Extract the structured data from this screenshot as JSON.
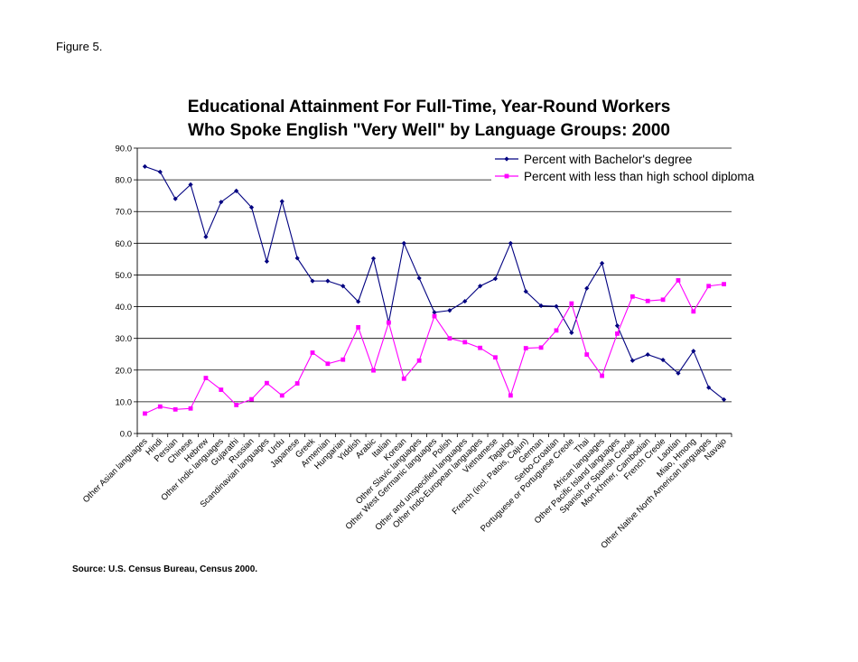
{
  "figure_label": "Figure 5.",
  "source": "Source: U.S. Census Bureau, Census 2000.",
  "chart_data": {
    "type": "line",
    "title_lines": [
      "Educational Attainment For Full-Time, Year-Round Workers",
      "Who Spoke English \"Very Well\" by Language Groups: 2000"
    ],
    "ylim": [
      0,
      90
    ],
    "y_ticks": [
      "0.0",
      "10.0",
      "20.0",
      "30.0",
      "40.0",
      "50.0",
      "60.0",
      "70.0",
      "80.0",
      "90.0"
    ],
    "y_tick_values": [
      0,
      10,
      20,
      30,
      40,
      50,
      60,
      70,
      80,
      90
    ],
    "grid": "horizontal",
    "legend_position": "top-right",
    "categories": [
      "Other Asian languages",
      "Hindi",
      "Persian",
      "Chinese",
      "Hebrew",
      "Other Indic languages",
      "Gujarathi",
      "Russian",
      "Scandinavian languages",
      "Urdu",
      "Japanese",
      "Greek",
      "Armenian",
      "Hungarian",
      "Yiddish",
      "Arabic",
      "Italian",
      "Korean",
      "Other Slavic languages",
      "Other West Germanic languages",
      "Polish",
      "Other and unspecified languages",
      "Other Indo-European languages",
      "Vietnamese",
      "Tagalog",
      "French (incl. Patois, Cajun)",
      "German",
      "Serbo-Croatian",
      "Portuguese or Portuguese Creole",
      "Thai",
      "African languages",
      "Other Pacific Island languages",
      "Spanish or Spanish Creole",
      "Mon-Khmer, Cambodian",
      "French Creole",
      "Laotian",
      "Miao, Hmong",
      "Other Native North American languages",
      "Navajo"
    ],
    "series": [
      {
        "name": "Percent with Bachelor's degree",
        "color": "#000080",
        "marker": "diamond",
        "values": [
          84.2,
          82.5,
          74.0,
          78.5,
          62.0,
          73.0,
          76.5,
          71.3,
          54.3,
          73.2,
          55.3,
          48.1,
          48.1,
          46.5,
          41.6,
          55.2,
          35.0,
          60.0,
          49.0,
          38.2,
          38.8,
          41.7,
          46.5,
          48.8,
          60.0,
          44.8,
          40.3,
          40.1,
          31.8,
          45.8,
          53.7,
          34.0,
          23.0,
          24.9,
          23.2,
          19.0,
          26.0,
          14.5,
          10.7
        ]
      },
      {
        "name": "Percent with less than high school diploma",
        "color": "#ff00ff",
        "marker": "square",
        "values": [
          6.3,
          8.5,
          7.6,
          7.9,
          17.5,
          13.8,
          9.0,
          10.8,
          15.9,
          12.0,
          15.8,
          25.5,
          22.0,
          23.3,
          33.5,
          19.9,
          35.0,
          17.3,
          23.0,
          37.0,
          30.0,
          28.8,
          27.0,
          24.0,
          12.0,
          26.9,
          27.1,
          32.5,
          41.0,
          24.9,
          18.2,
          31.5,
          43.2,
          41.8,
          42.2,
          48.3,
          38.5,
          46.5,
          47.1
        ]
      }
    ]
  }
}
